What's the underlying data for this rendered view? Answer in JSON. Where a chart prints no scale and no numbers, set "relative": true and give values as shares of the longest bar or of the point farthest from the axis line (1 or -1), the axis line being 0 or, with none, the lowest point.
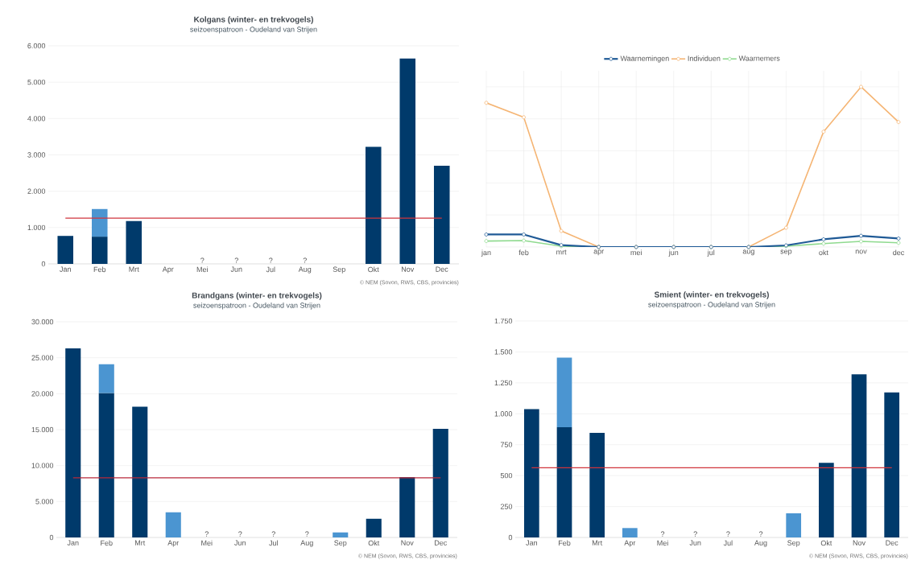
{
  "chart_data": [
    {
      "type": "bar",
      "title": "Kolgans (winter- en trekvogels)",
      "subtitle": "seizoenspatroon - Oudeland van Strijen",
      "categories": [
        "Jan",
        "Feb",
        "Mrt",
        "Apr",
        "Mei",
        "Jun",
        "Jul",
        "Aug",
        "Sep",
        "Okt",
        "Nov",
        "Dec"
      ],
      "stacked": true,
      "series": [
        {
          "color": "#003a6b",
          "values": [
            770,
            750,
            1180,
            null,
            null,
            null,
            null,
            null,
            null,
            3220,
            5650,
            2700
          ]
        },
        {
          "color": "#4b95d1",
          "values": [
            null,
            760,
            null,
            null,
            null,
            null,
            null,
            null,
            null,
            null,
            null,
            null
          ]
        }
      ],
      "ylim": [
        0,
        6000
      ],
      "yticks": [
        0,
        {
          "value": 1000,
          "label": "1.000"
        },
        {
          "value": 2000,
          "label": "2.000"
        },
        {
          "value": 3000,
          "label": "3.000"
        },
        {
          "value": 4000,
          "label": "4.000"
        },
        {
          "value": 5000,
          "label": "5.000"
        },
        {
          "value": 6000,
          "label": "6.000"
        }
      ],
      "grid": "y",
      "ref_lines": [
        {
          "axis": "y",
          "value": 1260,
          "color": "#d0343c"
        }
      ],
      "annotations": [
        "?",
        "?",
        "?",
        "?",
        "© NEM (Sovon, RWS, CBS, provincies)"
      ]
    },
    {
      "type": "line",
      "categories": [
        "jan",
        "feb",
        "mrt",
        "apr",
        "mei",
        "jun",
        "jul",
        "aug",
        "sep",
        "okt",
        "nov",
        "dec"
      ],
      "relative": true,
      "grid": true,
      "legend": "top",
      "marker": "circle",
      "series": [
        {
          "name": "Waarnemingen",
          "color": "#1f5a96",
          "values": [
            0.078,
            0.078,
            0.012,
            0,
            0,
            0,
            0,
            0,
            0.01,
            0.048,
            0.07,
            0.053
          ]
        },
        {
          "name": "Individuen",
          "color": "#f5b574",
          "values": [
            0.9,
            0.81,
            0.1,
            0,
            0,
            0,
            0,
            0,
            0.12,
            0.72,
            1,
            0.78
          ]
        },
        {
          "name": "Waarnemers",
          "color": "#8fda8f",
          "values": [
            0.037,
            0.04,
            0.005,
            0,
            0,
            0,
            0,
            0,
            0.005,
            0.021,
            0.035,
            0.026
          ]
        }
      ]
    },
    {
      "type": "bar",
      "title": "Brandgans (winter- en trekvogels)",
      "subtitle": "seizoenspatroon - Oudeland van Strijen",
      "categories": [
        "Jan",
        "Feb",
        "Mrt",
        "Apr",
        "Mei",
        "Jun",
        "Jul",
        "Aug",
        "Sep",
        "Okt",
        "Nov",
        "Dec"
      ],
      "stacked": true,
      "series": [
        {
          "color": "#003a6b",
          "values": [
            26300,
            20100,
            18200,
            null,
            null,
            null,
            null,
            null,
            null,
            2600,
            8400,
            15100
          ]
        },
        {
          "color": "#4b95d1",
          "values": [
            null,
            4000,
            null,
            3500,
            null,
            null,
            null,
            null,
            700,
            null,
            null,
            null
          ]
        }
      ],
      "ylim": [
        0,
        30000
      ],
      "yticks": [
        0,
        {
          "value": 5000,
          "label": "5.000"
        },
        {
          "value": 10000,
          "label": "10.000"
        },
        {
          "value": 15000,
          "label": "15.000"
        },
        {
          "value": 20000,
          "label": "20.000"
        },
        {
          "value": 25000,
          "label": "25.000"
        },
        {
          "value": 30000,
          "label": "30.000"
        }
      ],
      "grid": "y",
      "ref_lines": [
        {
          "axis": "y",
          "value": 8300,
          "color": "#b8283a"
        }
      ],
      "annotations": [
        "?",
        "?",
        "?",
        "?",
        "© NEM (Sovon, RWS, CBS, provincies)"
      ]
    },
    {
      "type": "bar",
      "title": "Smient (winter- en trekvogels)",
      "subtitle": "seizoenspatroon - Oudeland van Strijen",
      "categories": [
        "Jan",
        "Feb",
        "Mrt",
        "Apr",
        "Mei",
        "Jun",
        "Jul",
        "Aug",
        "Sep",
        "Okt",
        "Nov",
        "Dec"
      ],
      "stacked": true,
      "series": [
        {
          "color": "#003a6b",
          "values": [
            1037,
            892,
            846,
            null,
            null,
            null,
            null,
            null,
            null,
            603,
            1319,
            1172
          ]
        },
        {
          "color": "#4b95d1",
          "values": [
            null,
            562,
            null,
            76,
            null,
            null,
            null,
            null,
            195,
            null,
            null,
            null
          ]
        }
      ],
      "ylim": [
        0,
        1750
      ],
      "yticks": [
        0,
        250,
        500,
        750,
        {
          "value": 1000,
          "label": "1.000"
        },
        {
          "value": 1250,
          "label": "1.250"
        },
        {
          "value": 1500,
          "label": "1.500"
        },
        {
          "value": 1750,
          "label": "1.750"
        }
      ],
      "grid": "y",
      "ref_lines": [
        {
          "axis": "y",
          "value": 564,
          "color": "#d0343c"
        }
      ],
      "annotations": [
        "?",
        "?",
        "?",
        "?",
        "© NEM (Sovon, RWS, CBS, provincies)"
      ]
    }
  ]
}
